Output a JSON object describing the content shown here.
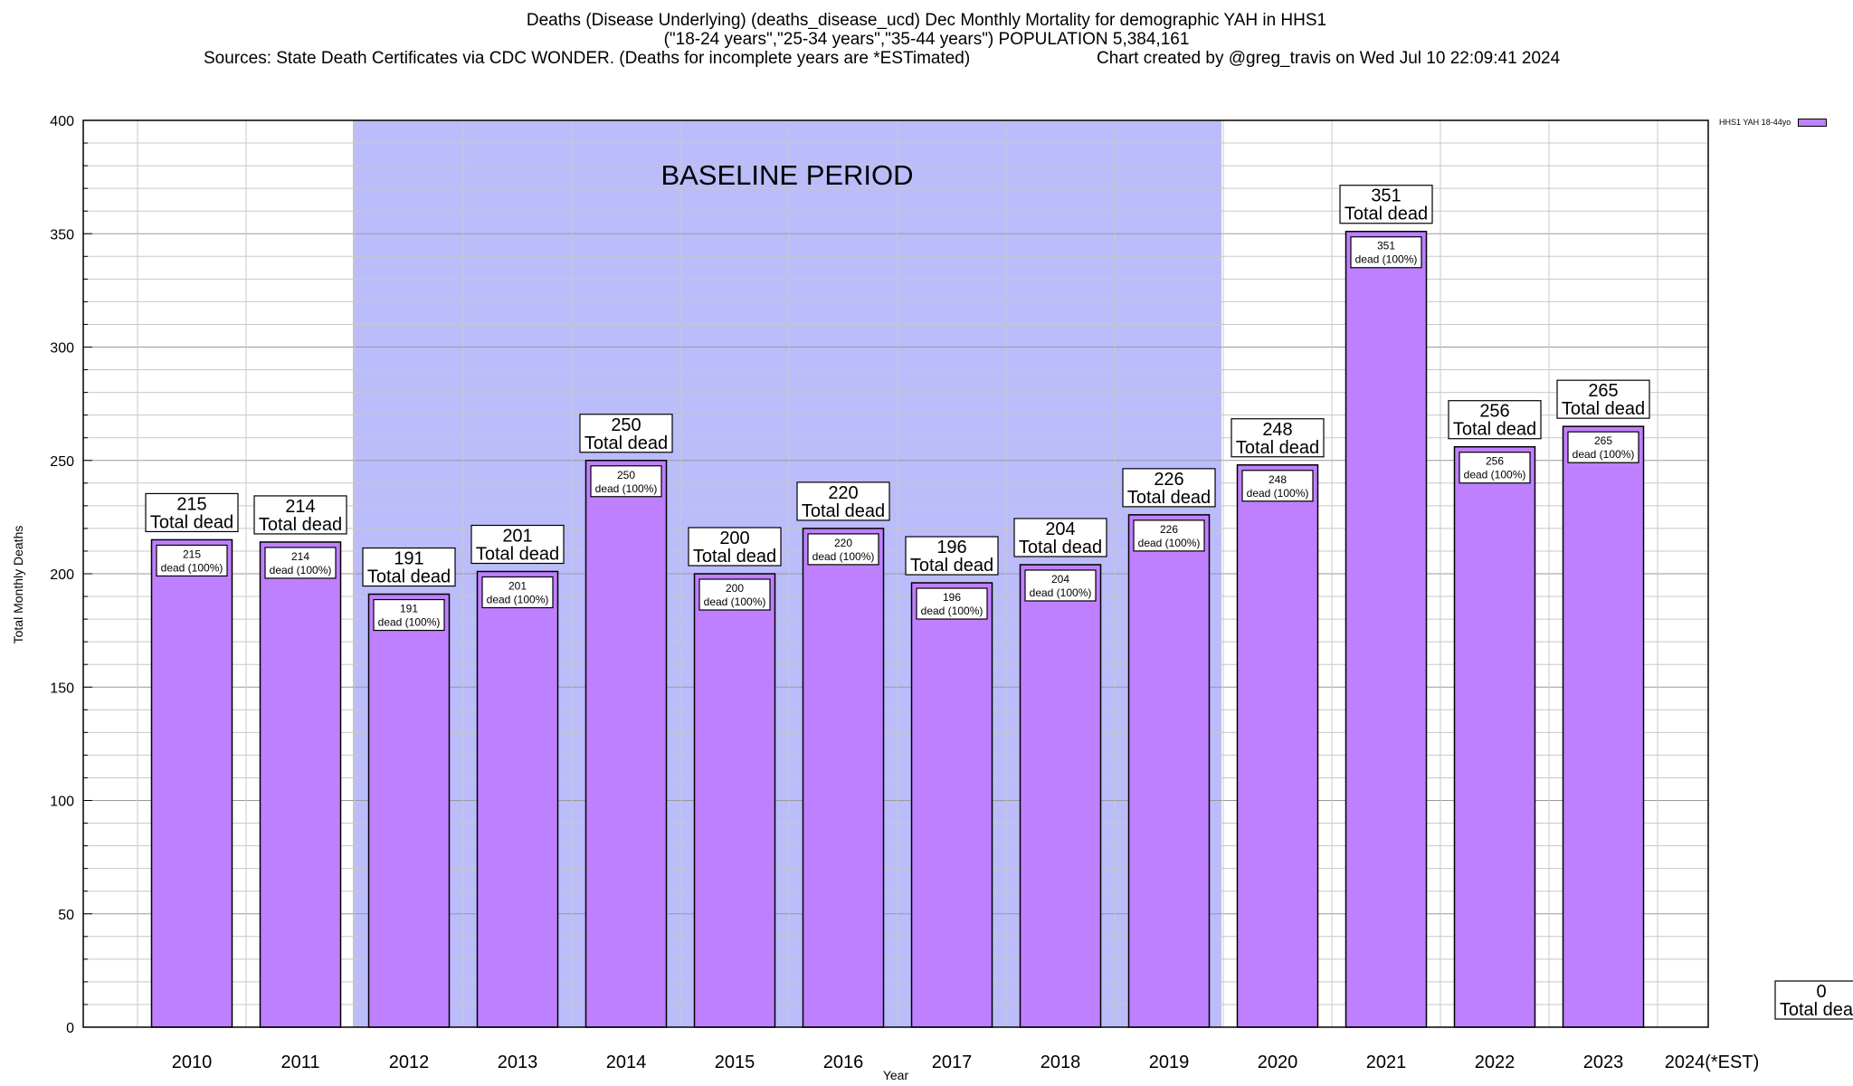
{
  "title_lines": [
    "Deaths (Disease Underlying) (deaths_disease_ucd) Dec Monthly Mortality for demographic YAH in HHS1",
    "(\"18-24 years\",\"25-34 years\",\"35-44 years\") POPULATION 5,384,161"
  ],
  "sources": "Sources: State Death Certificates via CDC WONDER. (Deaths for incomplete years are *ESTimated)",
  "credit": "Chart created by @greg_travis on Wed Jul 10 22:09:41 2024",
  "colors": {
    "bar": "#bf80ff",
    "baseline_band": "#bbbcfa"
  },
  "chart_data": {
    "type": "bar",
    "xlabel": "Year",
    "ylabel": "Total Monthly Deaths",
    "ylim": [
      0,
      400
    ],
    "yticks": [
      0,
      50,
      100,
      150,
      200,
      250,
      300,
      350,
      400
    ],
    "grid": true,
    "legend": {
      "position": "top-right",
      "label": "HHS1 YAH 18-44yo"
    },
    "categories": [
      "2010",
      "2011",
      "2012",
      "2013",
      "2014",
      "2015",
      "2016",
      "2017",
      "2018",
      "2019",
      "2020",
      "2021",
      "2022",
      "2023",
      "2024(*EST)"
    ],
    "series": [
      {
        "name": "HHS1 YAH 18-44yo",
        "values": [
          215,
          214,
          191,
          201,
          250,
          200,
          220,
          196,
          204,
          226,
          248,
          351,
          256,
          265,
          0
        ]
      }
    ],
    "total_label": "Total dead",
    "inner_label": "dead (100%)",
    "baseline": {
      "label": "BASELINE PERIOD",
      "from": "2012",
      "to": "2019"
    }
  }
}
